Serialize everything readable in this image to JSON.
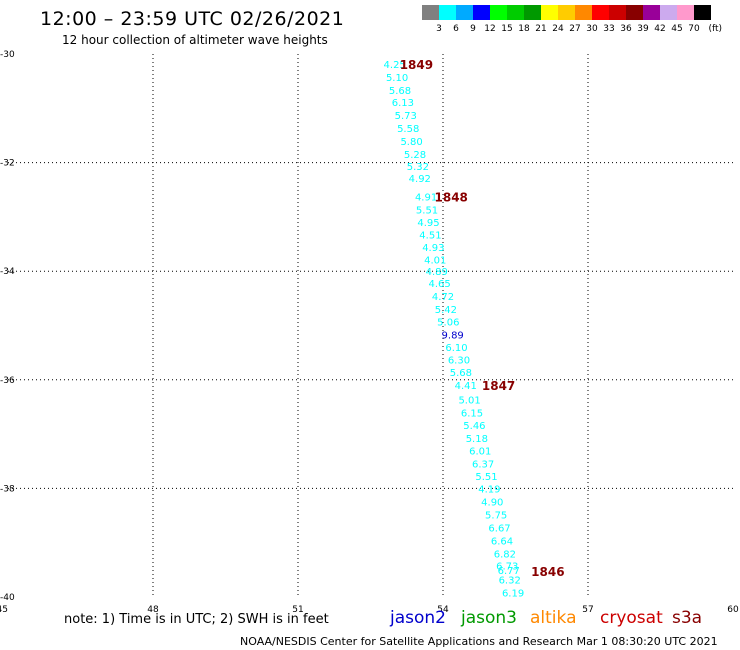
{
  "header": {
    "title": "12:00 – 23:59 UTC 02/26/2021",
    "subtitle": "12 hour collection of altimeter wave heights"
  },
  "legend": {
    "labels": [
      "3",
      "6",
      "9",
      "12",
      "15",
      "18",
      "21",
      "24",
      "27",
      "30",
      "33",
      "36",
      "39",
      "42",
      "45",
      "70"
    ],
    "unit": "(ft)",
    "colors": [
      "#808080",
      "#00ffff",
      "#00aaff",
      "#0000ff",
      "#00ff00",
      "#00cc00",
      "#009900",
      "#ffff00",
      "#ffcc00",
      "#ff8800",
      "#ff0000",
      "#cc0000",
      "#880000",
      "#990099",
      "#ccaaee",
      "#ff99cc",
      "#000000"
    ]
  },
  "map": {
    "lon_ticks": [
      "45",
      "48",
      "51",
      "54",
      "57",
      "60"
    ],
    "lat_ticks": [
      "-30",
      "-32",
      "-34",
      "-36",
      "-38",
      "-40"
    ],
    "lon_range": [
      45,
      60
    ],
    "lat_range": [
      -30,
      -40
    ],
    "grid": "dotted"
  },
  "obs": [
    {
      "v": "4.25",
      "lon": 53.0,
      "lat": -30.18,
      "c": "#00ffff"
    },
    {
      "v": "5.10",
      "lon": 53.05,
      "lat": -30.42,
      "c": "#00ffff"
    },
    {
      "v": "5.68",
      "lon": 53.11,
      "lat": -30.66,
      "c": "#00ffff"
    },
    {
      "v": "6.13",
      "lon": 53.17,
      "lat": -30.88,
      "c": "#00ffff"
    },
    {
      "v": "5.73",
      "lon": 53.23,
      "lat": -31.12,
      "c": "#00ffff"
    },
    {
      "v": "5.58",
      "lon": 53.28,
      "lat": -31.36,
      "c": "#00ffff"
    },
    {
      "v": "5.80",
      "lon": 53.35,
      "lat": -31.6,
      "c": "#00ffff"
    },
    {
      "v": "5.28",
      "lon": 53.42,
      "lat": -31.84,
      "c": "#00ffff"
    },
    {
      "v": "5.32",
      "lon": 53.48,
      "lat": -32.06,
      "c": "#00ffff"
    },
    {
      "v": "4.92",
      "lon": 53.52,
      "lat": -32.28,
      "c": "#00ffff"
    },
    {
      "v": "4.91",
      "lon": 53.65,
      "lat": -32.62,
      "c": "#00ffff"
    },
    {
      "v": "5.51",
      "lon": 53.67,
      "lat": -32.86,
      "c": "#00ffff"
    },
    {
      "v": "4.95",
      "lon": 53.7,
      "lat": -33.09,
      "c": "#00ffff"
    },
    {
      "v": "4.51",
      "lon": 53.74,
      "lat": -33.32,
      "c": "#00ffff"
    },
    {
      "v": "4.93",
      "lon": 53.8,
      "lat": -33.55,
      "c": "#00ffff"
    },
    {
      "v": "4.01",
      "lon": 53.84,
      "lat": -33.78,
      "c": "#00ffff"
    },
    {
      "v": "4.89",
      "lon": 53.87,
      "lat": -34.0,
      "c": "#00ffff"
    },
    {
      "v": "4.65",
      "lon": 53.93,
      "lat": -34.22,
      "c": "#00ffff"
    },
    {
      "v": "4.72",
      "lon": 54.0,
      "lat": -34.46,
      "c": "#00ffff"
    },
    {
      "v": "5.42",
      "lon": 54.06,
      "lat": -34.7,
      "c": "#00ffff"
    },
    {
      "v": "5.06",
      "lon": 54.11,
      "lat": -34.93,
      "c": "#00ffff"
    },
    {
      "v": "9.89",
      "lon": 54.2,
      "lat": -35.17,
      "c": "#0000cc"
    },
    {
      "v": "6.10",
      "lon": 54.28,
      "lat": -35.4,
      "c": "#00ffff"
    },
    {
      "v": "6.30",
      "lon": 54.33,
      "lat": -35.63,
      "c": "#00ffff"
    },
    {
      "v": "5.68",
      "lon": 54.37,
      "lat": -35.86,
      "c": "#00ffff"
    },
    {
      "v": "4.41",
      "lon": 54.47,
      "lat": -36.1,
      "c": "#00ffff"
    },
    {
      "v": "5.01",
      "lon": 54.55,
      "lat": -36.36,
      "c": "#00ffff"
    },
    {
      "v": "6.15",
      "lon": 54.6,
      "lat": -36.6,
      "c": "#00ffff"
    },
    {
      "v": "5.46",
      "lon": 54.65,
      "lat": -36.83,
      "c": "#00ffff"
    },
    {
      "v": "5.18",
      "lon": 54.7,
      "lat": -37.07,
      "c": "#00ffff"
    },
    {
      "v": "6.01",
      "lon": 54.77,
      "lat": -37.3,
      "c": "#00ffff"
    },
    {
      "v": "6.37",
      "lon": 54.83,
      "lat": -37.54,
      "c": "#00ffff"
    },
    {
      "v": "5.51",
      "lon": 54.9,
      "lat": -37.77,
      "c": "#00ffff"
    },
    {
      "v": "4.19",
      "lon": 54.96,
      "lat": -38.0,
      "c": "#00ffff"
    },
    {
      "v": "4.90",
      "lon": 55.02,
      "lat": -38.24,
      "c": "#00ffff"
    },
    {
      "v": "5.75",
      "lon": 55.1,
      "lat": -38.48,
      "c": "#00ffff"
    },
    {
      "v": "6.67",
      "lon": 55.17,
      "lat": -38.72,
      "c": "#00ffff"
    },
    {
      "v": "6.64",
      "lon": 55.22,
      "lat": -38.96,
      "c": "#00ffff"
    },
    {
      "v": "6.82",
      "lon": 55.28,
      "lat": -39.2,
      "c": "#00ffff"
    },
    {
      "v": "6.73",
      "lon": 55.33,
      "lat": -39.42,
      "c": "#00ffff"
    },
    {
      "v": "6.77",
      "lon": 55.36,
      "lat": -39.5,
      "c": "#00ffff"
    },
    {
      "v": "6.32",
      "lon": 55.38,
      "lat": -39.68,
      "c": "#00ffff"
    },
    {
      "v": "6.19",
      "lon": 55.45,
      "lat": -39.92,
      "c": "#00ffff"
    }
  ],
  "pass_labels": [
    {
      "t": "1849",
      "lon": 53.45,
      "lat": -30.18
    },
    {
      "t": "1848",
      "lon": 54.17,
      "lat": -32.62
    },
    {
      "t": "1847",
      "lon": 55.15,
      "lat": -36.1
    },
    {
      "t": "1846",
      "lon": 56.17,
      "lat": -39.52
    }
  ],
  "pass_color": "#880000",
  "footer": {
    "note": "note:  1) Time is in UTC;  2) SWH is in feet",
    "satellites": [
      {
        "name": "jason2",
        "color": "#0000cc"
      },
      {
        "name": "jason3",
        "color": "#009900"
      },
      {
        "name": "altika",
        "color": "#ff8800"
      },
      {
        "name": "cryosat",
        "color": "#cc0000"
      },
      {
        "name": "s3a",
        "color": "#880000"
      }
    ],
    "credit": "NOAA/NESDIS Center for Satellite Applications and Research    Mar  1 08:30:20 UTC 2021"
  }
}
